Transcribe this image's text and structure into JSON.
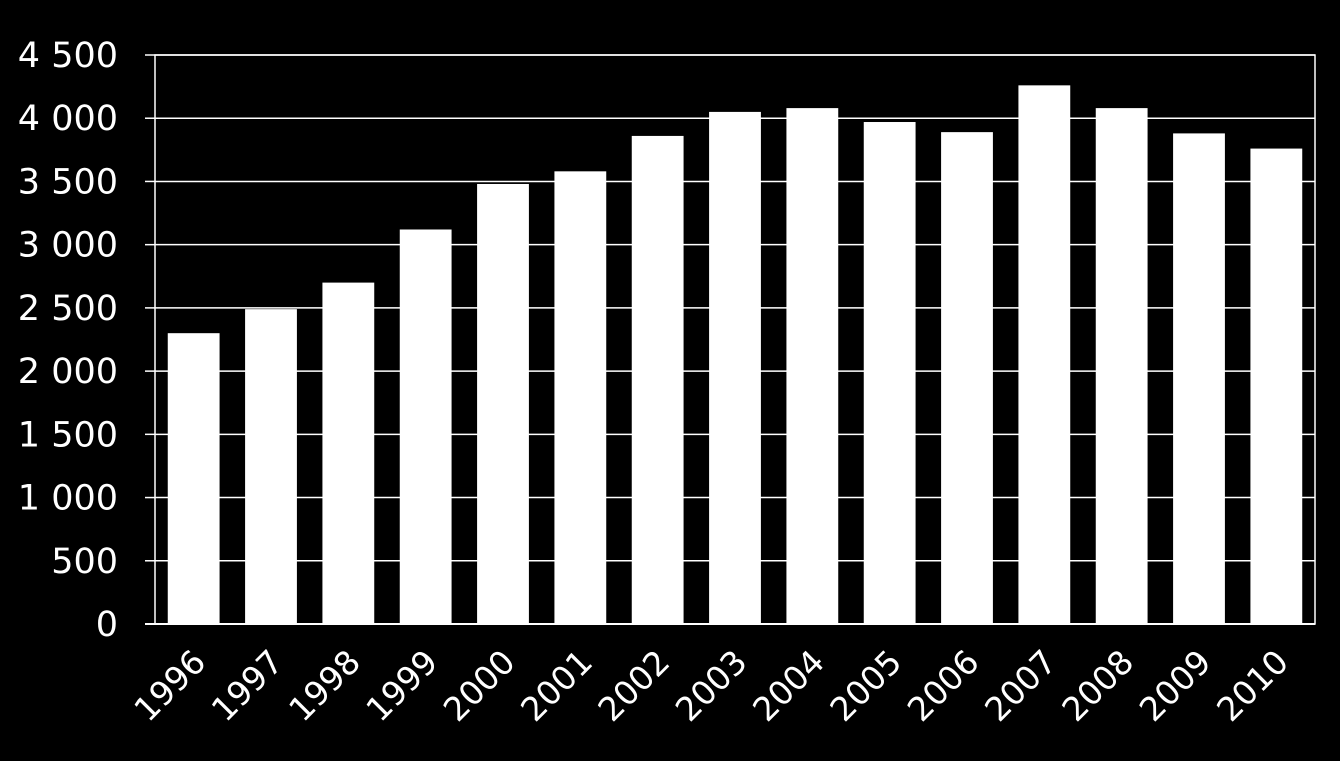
{
  "chart_data": {
    "type": "bar",
    "title": "",
    "xlabel": "",
    "ylabel": "",
    "categories": [
      "1996",
      "1997",
      "1998",
      "1999",
      "2000",
      "2001",
      "2002",
      "2003",
      "2004",
      "2005",
      "2006",
      "2007",
      "2008",
      "2009",
      "2010"
    ],
    "values": [
      2300,
      2490,
      2700,
      3120,
      3480,
      3580,
      3860,
      4050,
      4080,
      3970,
      3890,
      4260,
      4080,
      3880,
      3760
    ],
    "ylim": [
      0,
      4500
    ],
    "yticks": [
      0,
      500,
      1000,
      1500,
      2000,
      2500,
      3000,
      3500,
      4000,
      4500
    ],
    "ytick_labels": [
      "0",
      "500",
      "1 000",
      "1 500",
      "2 000",
      "2 500",
      "3 000",
      "3 500",
      "4 000",
      "4 500"
    ],
    "grid": true,
    "colors": {
      "background": "#000000",
      "bar": "#ffffff",
      "grid": "#ffffff",
      "text": "#ffffff"
    }
  }
}
